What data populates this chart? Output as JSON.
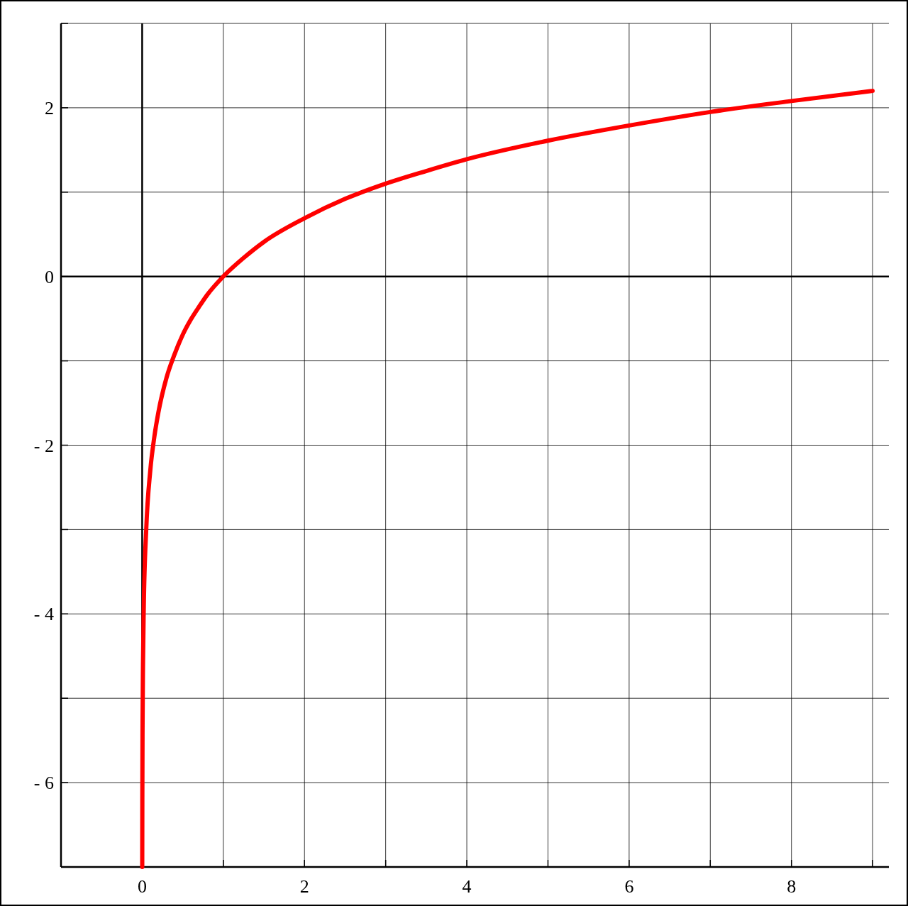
{
  "chart_data": {
    "type": "line",
    "x": [
      0.0009,
      0.002,
      0.005,
      0.01,
      0.02,
      0.05,
      0.1,
      0.15,
      0.2,
      0.3,
      0.4,
      0.5,
      0.6,
      0.7,
      0.8,
      1,
      1.25,
      1.5,
      2,
      2.5,
      3,
      3.5,
      4,
      5,
      6,
      7,
      8,
      9
    ],
    "series": [
      {
        "color": "#ff0000",
        "values": [
          -7.0,
          -6.21,
          -5.3,
          -4.61,
          -3.91,
          -3.0,
          -2.3,
          -1.9,
          -1.61,
          -1.2,
          -0.92,
          -0.69,
          -0.51,
          -0.36,
          -0.22,
          0,
          0.22,
          0.41,
          0.69,
          0.92,
          1.1,
          1.25,
          1.39,
          1.61,
          1.79,
          1.95,
          2.08,
          2.2
        ]
      }
    ],
    "xlim": [
      -1,
      9.2
    ],
    "ylim": [
      -7,
      3
    ],
    "xticks": [
      {
        "value": -1,
        "label": null
      },
      0,
      {
        "value": 1,
        "label": null
      },
      2,
      {
        "value": 3,
        "label": null
      },
      4,
      {
        "value": 5,
        "label": null
      },
      6,
      {
        "value": 7,
        "label": null
      },
      8,
      {
        "value": 9,
        "label": null
      }
    ],
    "yticks": [
      {
        "value": -7,
        "label": null
      },
      {
        "value": -6,
        "label": "- 6"
      },
      {
        "value": -5,
        "label": null
      },
      {
        "value": -4,
        "label": "- 4"
      },
      {
        "value": -3,
        "label": null
      },
      {
        "value": -2,
        "label": "- 2"
      },
      {
        "value": -1,
        "label": null
      },
      0,
      {
        "value": 1,
        "label": null
      },
      2,
      {
        "value": 3,
        "label": null
      }
    ],
    "grid": true,
    "marker": "none",
    "line_style": "solid"
  }
}
